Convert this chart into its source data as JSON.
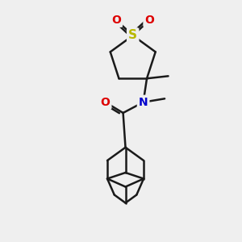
{
  "bg_color": "#efefef",
  "line_color": "#1a1a1a",
  "S_color": "#b8b800",
  "O_color": "#dd0000",
  "N_color": "#0000cc",
  "line_width": 1.8,
  "figsize": [
    3.0,
    3.0
  ],
  "dpi": 100,
  "xlim": [
    0,
    10
  ],
  "ylim": [
    0,
    10
  ]
}
